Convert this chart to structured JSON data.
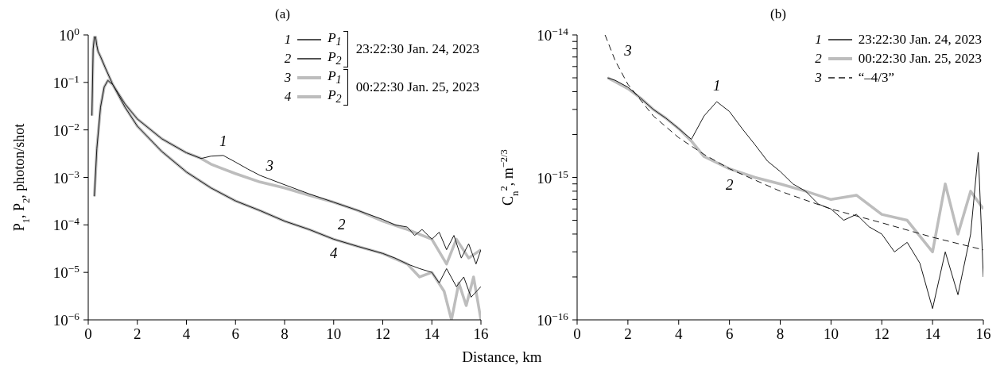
{
  "chart_data": [
    {
      "type": "line",
      "title": "(a)",
      "xlabel": "Distance, km",
      "ylabel": "P$_{1}$, P$_{2}$, photon/shot",
      "log": true,
      "legend": "top right",
      "marker": "none",
      "line_style": "solid",
      "xlim": [
        0,
        16
      ],
      "xticks": [
        0,
        2,
        4,
        6,
        8,
        10,
        12,
        14,
        16
      ],
      "ylim": [
        1e-06,
        1
      ],
      "yticks": [
        {
          "value": 1e-06,
          "label": "10$^{−6}$"
        },
        {
          "value": 1e-05,
          "label": "10$^{−5}$"
        },
        {
          "value": 0.0001,
          "label": "10$^{−4}$"
        },
        {
          "value": 0.001,
          "label": "10$^{−3}$"
        },
        {
          "value": 0.01,
          "label": "10$^{−2}$"
        },
        {
          "value": 0.1,
          "label": "10$^{−1}$"
        },
        {
          "value": 1,
          "label": "10$^{0}$"
        }
      ],
      "annotations": [
        "23:22:30 Jan. 24, 2023",
        "00:22:30 Jan. 25, 2023",
        "1",
        "2",
        "3",
        "4"
      ],
      "series": [
        {
          "name": "P$_{1}$",
          "color": "#1a1a1a",
          "x": [
            0.15,
            0.2,
            0.25,
            0.3,
            0.35,
            0.4,
            0.5,
            0.7,
            1,
            1.5,
            2,
            3,
            4,
            4.6,
            5,
            5.5,
            6,
            6.5,
            7,
            8,
            9,
            10,
            11,
            12,
            12.5,
            13,
            13.3,
            13.6,
            14,
            14.3,
            14.6,
            14.9,
            15.2,
            15.5,
            15.8,
            16
          ],
          "values": [
            0.02,
            0.5,
            0.9,
            0.9,
            0.6,
            0.45,
            0.35,
            0.2,
            0.09,
            0.035,
            0.017,
            0.0065,
            0.0033,
            0.0025,
            0.0028,
            0.0029,
            0.0021,
            0.0015,
            0.0011,
            0.0007,
            0.00045,
            0.0003,
            0.0002,
            0.00013,
            0.0001,
            9e-05,
            6e-05,
            8e-05,
            5e-05,
            7e-05,
            3e-05,
            6e-05,
            2e-05,
            4e-05,
            1.5e-05,
            3e-05
          ]
        },
        {
          "name": "P$_{2}$",
          "color": "#1a1a1a",
          "x": [
            0.25,
            0.35,
            0.5,
            0.65,
            0.8,
            1,
            1.5,
            2,
            3,
            4,
            5,
            6,
            7,
            8,
            9,
            10,
            11,
            12,
            12.5,
            13,
            13.5,
            14,
            14.3,
            14.6,
            15,
            15.3,
            15.6,
            16
          ],
          "values": [
            0.0004,
            0.004,
            0.03,
            0.08,
            0.11,
            0.09,
            0.03,
            0.012,
            0.0035,
            0.0013,
            0.0006,
            0.00032,
            0.0002,
            0.00012,
            8e-05,
            5e-05,
            3.5e-05,
            2.5e-05,
            2e-05,
            1.5e-05,
            1.2e-05,
            1e-05,
            6e-06,
            1.2e-05,
            5e-06,
            8e-06,
            3e-06,
            5e-06
          ]
        },
        {
          "name": "P$_{1}$",
          "color": "#bdbdbd",
          "x": [
            0.15,
            0.2,
            0.25,
            0.3,
            0.35,
            0.4,
            0.5,
            0.7,
            1,
            1.5,
            2,
            3,
            4,
            4.6,
            5,
            5.5,
            6,
            7,
            8,
            9,
            10,
            11,
            12,
            13,
            14,
            14.6,
            15,
            15.5,
            16
          ],
          "values": [
            0.02,
            0.5,
            0.9,
            0.9,
            0.6,
            0.45,
            0.35,
            0.2,
            0.09,
            0.035,
            0.017,
            0.0065,
            0.0033,
            0.0025,
            0.0019,
            0.0015,
            0.0012,
            0.0008,
            0.0006,
            0.00042,
            0.0003,
            0.0002,
            0.00012,
            8e-05,
            5e-05,
            1.5e-05,
            5e-05,
            2e-05,
            3e-05
          ]
        },
        {
          "name": "P$_{2}$",
          "color": "#bdbdbd",
          "x": [
            0.25,
            0.35,
            0.5,
            0.65,
            0.8,
            1,
            1.5,
            2,
            3,
            4,
            5,
            6,
            7,
            8,
            9,
            10,
            11,
            12,
            13,
            13.5,
            14,
            14.5,
            14.8,
            15.1,
            15.4,
            15.7,
            16
          ],
          "values": [
            0.0004,
            0.004,
            0.03,
            0.08,
            0.11,
            0.09,
            0.03,
            0.012,
            0.0035,
            0.0013,
            0.0006,
            0.00032,
            0.0002,
            0.00012,
            8e-05,
            5e-05,
            3.5e-05,
            2.5e-05,
            1.5e-05,
            8e-06,
            1e-05,
            4e-06,
            1e-06,
            6e-06,
            2e-06,
            8e-06,
            1e-06
          ]
        }
      ]
    },
    {
      "type": "line",
      "title": "(b)",
      "ylabel": "C$_{n}$$^{2}$, m$^{−2/3}$",
      "log": true,
      "legend": "top right",
      "marker": "none",
      "line_style": "solid",
      "xlim": [
        0,
        16
      ],
      "xticks": [
        0,
        2,
        4,
        6,
        8,
        10,
        12,
        14,
        16
      ],
      "ylim": [
        1e-16,
        1e-14
      ],
      "yticks": [
        {
          "value": 1e-16,
          "label": "10$^{−16}$"
        },
        {
          "value": 2e-16,
          "label": null
        },
        {
          "value": 3e-16,
          "label": null
        },
        {
          "value": 4e-16,
          "label": null
        },
        {
          "value": 5e-16,
          "label": null
        },
        {
          "value": 6e-16,
          "label": null
        },
        {
          "value": 7e-16,
          "label": null
        },
        {
          "value": 8e-16,
          "label": null
        },
        {
          "value": 9e-16,
          "label": null
        },
        {
          "value": 1e-15,
          "label": "10$^{−15}$"
        },
        {
          "value": 2e-15,
          "label": null
        },
        {
          "value": 3e-15,
          "label": null
        },
        {
          "value": 4e-15,
          "label": null
        },
        {
          "value": 5e-15,
          "label": null
        },
        {
          "value": 6e-15,
          "label": null
        },
        {
          "value": 7e-15,
          "label": null
        },
        {
          "value": 8e-15,
          "label": null
        },
        {
          "value": 9e-15,
          "label": null
        },
        {
          "value": 1e-14,
          "label": "10$^{−14}$"
        }
      ],
      "annotations": [
        "1",
        "2",
        "3"
      ],
      "series": [
        {
          "name": "23:22:30 Jan. 24, 2023",
          "color": "#1a1a1a",
          "x": [
            1.2,
            1.5,
            2,
            2.5,
            3,
            3.5,
            4,
            4.5,
            5,
            5.5,
            6,
            6.5,
            7,
            7.5,
            8,
            8.5,
            9,
            9.5,
            10,
            10.5,
            11,
            11.5,
            12,
            12.5,
            13,
            13.5,
            14,
            14.5,
            15,
            15.5,
            15.8,
            16
          ],
          "values": [
            5e-15,
            4.8e-15,
            4.3e-15,
            3.6e-15,
            3e-15,
            2.6e-15,
            2.2e-15,
            1.85e-15,
            2.7e-15,
            3.4e-15,
            2.9e-15,
            2.2e-15,
            1.7e-15,
            1.3e-15,
            1.1e-15,
            9e-16,
            8e-16,
            6.5e-16,
            6e-16,
            5e-16,
            5.5e-16,
            4.5e-16,
            4e-16,
            3e-16,
            3.5e-16,
            2.5e-16,
            1.2e-16,
            3e-16,
            1.5e-16,
            4e-16,
            1.5e-15,
            2e-16
          ]
        },
        {
          "name": "00:22:30 Jan. 25, 2023",
          "color": "#bdbdbd",
          "x": [
            1.2,
            1.5,
            2,
            2.5,
            3,
            3.5,
            4,
            4.5,
            5,
            6,
            7,
            8,
            9,
            10,
            11,
            12,
            13,
            14,
            14.5,
            15,
            15.5,
            16
          ],
          "values": [
            5e-15,
            4.7e-15,
            4.2e-15,
            3.6e-15,
            3e-15,
            2.6e-15,
            2.2e-15,
            1.8e-15,
            1.4e-15,
            1.15e-15,
            1e-15,
            9e-16,
            8e-16,
            7e-16,
            7.5e-16,
            5.5e-16,
            5e-16,
            3e-16,
            9e-16,
            4e-16,
            8e-16,
            6e-16
          ]
        },
        {
          "name": "“–4/3”",
          "color": "#1a1a1a",
          "line_style": "dashed",
          "x": [
            1.1,
            1.5,
            2,
            3,
            4,
            5,
            6,
            8,
            10,
            12,
            14,
            16
          ],
          "values": [
            1e-14,
            6.6e-15,
            4.5e-15,
            2.7e-15,
            1.9e-15,
            1.45e-15,
            1.15e-15,
            8e-16,
            6e-16,
            4.8e-16,
            3.8e-16,
            3.1e-16
          ]
        }
      ]
    }
  ]
}
